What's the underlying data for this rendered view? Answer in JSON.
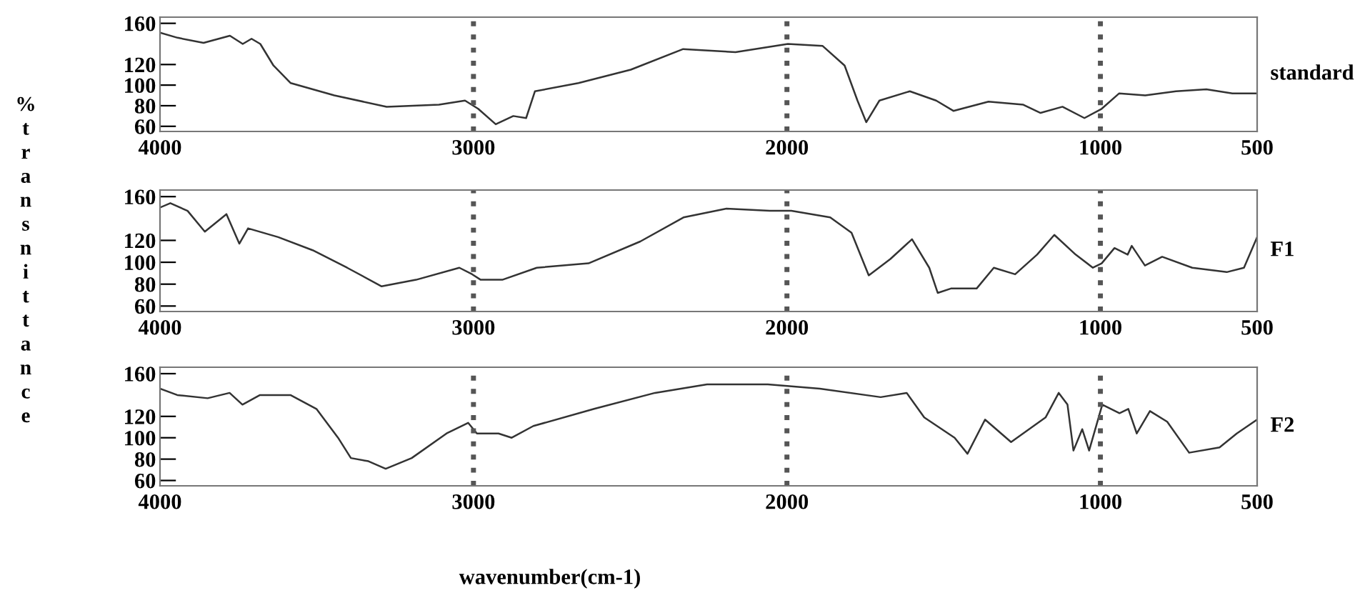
{
  "chart_data": [
    {
      "type": "line",
      "title": "standard",
      "xlim": [
        4000,
        500
      ],
      "xticks": [
        4000,
        3000,
        2000,
        1000,
        500
      ],
      "ylim": [
        55,
        166
      ],
      "yticks": [
        60,
        80,
        100,
        120,
        160
      ],
      "grid": false,
      "marker": "none",
      "line_style": "solid",
      "ref_lines": [
        {
          "axis": "x",
          "value": 3000,
          "color": "#555555",
          "line_style": "dotted"
        },
        {
          "axis": "x",
          "value": 2000,
          "color": "#555555",
          "line_style": "dotted"
        },
        {
          "axis": "x",
          "value": 1000,
          "color": "#555555",
          "line_style": "dotted"
        }
      ],
      "series": [
        {
          "color": "#333333",
          "x": [
            4000,
            3944,
            3861,
            3777,
            3736,
            3708,
            3680,
            3638,
            3583,
            3444,
            3277,
            3110,
            3027,
            2985,
            2929,
            2873,
            2832,
            2804,
            2665,
            2498,
            2331,
            2164,
            1997,
            1886,
            1816,
            1775,
            1747,
            1705,
            1608,
            1524,
            1469,
            1357,
            1246,
            1191,
            1121,
            1051,
            996,
            940,
            857,
            759,
            662,
            579,
            500
          ],
          "values": [
            151,
            146,
            141,
            148,
            140,
            145,
            140,
            119,
            102,
            90,
            79,
            81,
            85,
            77,
            62,
            70,
            68,
            94,
            102,
            115,
            135,
            132,
            140,
            138,
            119,
            85,
            64,
            85,
            94,
            85,
            75,
            84,
            81,
            73,
            79,
            68,
            77,
            92,
            90,
            94,
            96,
            92,
            92
          ]
        }
      ]
    },
    {
      "type": "line",
      "title": "F1",
      "ylabel": "%transnittance",
      "xlim": [
        4000,
        500
      ],
      "xticks": [
        4000,
        3000,
        2000,
        1000,
        500
      ],
      "ylim": [
        55,
        166
      ],
      "yticks": [
        60,
        80,
        100,
        120,
        160
      ],
      "grid": false,
      "marker": "none",
      "line_style": "solid",
      "ref_lines": [
        {
          "axis": "x",
          "value": 3000,
          "color": "#555555",
          "line_style": "dotted"
        },
        {
          "axis": "x",
          "value": 2000,
          "color": "#555555",
          "line_style": "dotted"
        },
        {
          "axis": "x",
          "value": 1000,
          "color": "#555555",
          "line_style": "dotted"
        }
      ],
      "series": [
        {
          "color": "#333333",
          "x": [
            4000,
            3967,
            3912,
            3857,
            3788,
            3747,
            3719,
            3623,
            3513,
            3403,
            3293,
            3183,
            3045,
            3004,
            2977,
            2908,
            2798,
            2633,
            2468,
            2330,
            2193,
            2055,
            1986,
            1862,
            1794,
            1739,
            1670,
            1601,
            1546,
            1519,
            1477,
            1395,
            1340,
            1272,
            1202,
            1147,
            1079,
            1024,
            996,
            955,
            913,
            900,
            858,
            803,
            707,
            597,
            542,
            500
          ],
          "values": [
            150,
            154,
            147,
            128,
            144,
            117,
            131,
            123,
            111,
            95,
            78,
            84,
            95,
            89,
            84,
            84,
            95,
            99,
            119,
            141,
            149,
            147,
            147,
            141,
            127,
            88,
            103,
            121,
            95,
            72,
            76,
            76,
            95,
            89,
            107,
            125,
            107,
            95,
            99,
            113,
            107,
            115,
            97,
            105,
            95,
            91,
            95,
            123
          ]
        }
      ]
    },
    {
      "type": "line",
      "title": "F2",
      "xlabel": "wavenumber(cm-1)",
      "xlim": [
        4000,
        500
      ],
      "xticks": [
        4000,
        3000,
        2000,
        1000,
        500
      ],
      "ylim": [
        55,
        166
      ],
      "yticks": [
        60,
        80,
        100,
        120,
        160
      ],
      "grid": false,
      "marker": "none",
      "line_style": "solid",
      "ref_lines": [
        {
          "axis": "x",
          "value": 3000,
          "color": "#555555",
          "line_style": "dotted"
        },
        {
          "axis": "x",
          "value": 2000,
          "color": "#555555",
          "line_style": "dotted"
        },
        {
          "axis": "x",
          "value": 1000,
          "color": "#555555",
          "line_style": "dotted"
        }
      ],
      "series": [
        {
          "color": "#333333",
          "x": [
            4000,
            3945,
            3848,
            3778,
            3737,
            3681,
            3584,
            3501,
            3432,
            3391,
            3335,
            3280,
            3197,
            3086,
            3017,
            2989,
            2920,
            2878,
            2809,
            2615,
            2421,
            2255,
            2061,
            1895,
            1701,
            1618,
            1562,
            1465,
            1424,
            1368,
            1285,
            1175,
            1133,
            1105,
            1086,
            1058,
            1036,
            994,
            939,
            911,
            884,
            842,
            787,
            717,
            620,
            565,
            500
          ],
          "values": [
            146,
            140,
            137,
            142,
            131,
            140,
            140,
            127,
            100,
            81,
            78,
            71,
            81,
            104,
            114,
            104,
            104,
            100,
            111,
            127,
            142,
            150,
            150,
            146,
            138,
            142,
            119,
            100,
            85,
            117,
            96,
            119,
            142,
            131,
            88,
            108,
            88,
            131,
            123,
            127,
            104,
            125,
            115,
            86,
            91,
            104,
            117
          ]
        }
      ]
    }
  ]
}
